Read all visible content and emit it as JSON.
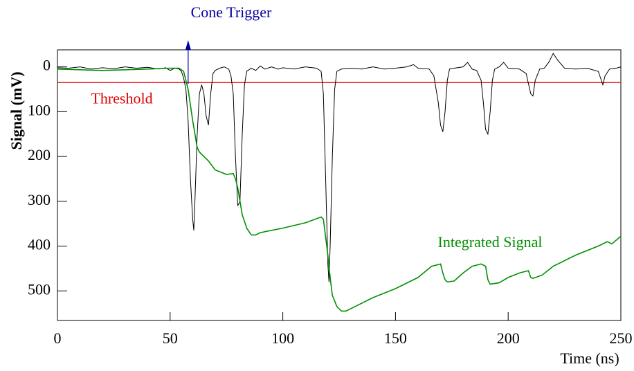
{
  "chart_data": {
    "type": "line",
    "xlabel": "Time (ns)",
    "ylabel": "Signal (mV)",
    "xlim": [
      0,
      250
    ],
    "ylim": [
      -38,
      566
    ],
    "y_inverted": true,
    "xticks": [
      0,
      50,
      100,
      150,
      200,
      250
    ],
    "yticks": [
      0,
      100,
      200,
      300,
      400,
      500
    ],
    "threshold": {
      "label": "Threshold",
      "value": 35,
      "color": "#e00000"
    },
    "trigger": {
      "label": "Cone Trigger",
      "value": 58,
      "color": "#0000a0"
    },
    "annotation": {
      "label": "Integrated Signal",
      "color": "#009000"
    },
    "series": [
      {
        "name": "Signal",
        "color": "#000000",
        "x": [
          0,
          5,
          10,
          15,
          20,
          25,
          30,
          35,
          40,
          45,
          48,
          50,
          52,
          54,
          55,
          56,
          57,
          58,
          59,
          60,
          60.5,
          61,
          62,
          63,
          64,
          65,
          66,
          67,
          68,
          69,
          70,
          72,
          74,
          76,
          77,
          78,
          79,
          80,
          81,
          82,
          83,
          84,
          86,
          88,
          90,
          92,
          95,
          98,
          100,
          105,
          110,
          115,
          117,
          118,
          119,
          120,
          120.5,
          121,
          122,
          123,
          124,
          126,
          130,
          135,
          140,
          145,
          150,
          155,
          158,
          160,
          165,
          167,
          169,
          170,
          171,
          172,
          173,
          174,
          176,
          180,
          182,
          184,
          186,
          188,
          189,
          190,
          191,
          192,
          193,
          194,
          196,
          198,
          200,
          205,
          208,
          210,
          211,
          212,
          214,
          216,
          218,
          220,
          222,
          225,
          230,
          235,
          240,
          242,
          243,
          245,
          248,
          250
        ],
        "values": [
          2,
          3,
          0,
          5,
          2,
          4,
          0,
          3,
          1,
          5,
          2,
          8,
          3,
          5,
          10,
          25,
          50,
          120,
          250,
          340,
          365,
          300,
          150,
          60,
          40,
          60,
          110,
          130,
          60,
          15,
          8,
          3,
          0,
          5,
          20,
          60,
          200,
          310,
          300,
          150,
          40,
          10,
          3,
          8,
          -2,
          5,
          0,
          5,
          2,
          5,
          0,
          3,
          10,
          60,
          250,
          440,
          480,
          400,
          200,
          50,
          10,
          5,
          3,
          5,
          0,
          5,
          3,
          0,
          -5,
          3,
          5,
          20,
          80,
          130,
          145,
          100,
          30,
          5,
          3,
          0,
          -10,
          5,
          8,
          30,
          80,
          140,
          150,
          100,
          30,
          5,
          0,
          -10,
          3,
          5,
          15,
          60,
          65,
          30,
          5,
          3,
          -10,
          -30,
          -15,
          3,
          5,
          3,
          10,
          40,
          20,
          5,
          3,
          0
        ]
      },
      {
        "name": "Integrated Signal",
        "color": "#009000",
        "x": [
          0,
          20,
          40,
          50,
          54,
          56,
          58,
          60,
          62,
          63,
          65,
          67,
          70,
          75,
          78,
          79,
          80,
          81,
          82,
          84,
          86,
          88,
          90,
          100,
          110,
          117,
          118,
          119,
          120,
          121,
          122,
          124,
          126,
          128,
          130,
          140,
          150,
          160,
          166,
          170,
          171,
          172,
          173,
          176,
          180,
          184,
          188,
          190,
          191,
          192,
          196,
          200,
          205,
          209,
          210,
          211,
          215,
          220,
          230,
          240,
          244,
          246,
          250
        ],
        "values": [
          5,
          8,
          5,
          3,
          3,
          10,
          50,
          120,
          180,
          190,
          200,
          210,
          230,
          240,
          238,
          250,
          270,
          300,
          330,
          360,
          375,
          375,
          370,
          360,
          348,
          335,
          340,
          380,
          420,
          470,
          510,
          535,
          545,
          545,
          540,
          515,
          495,
          470,
          445,
          440,
          460,
          475,
          480,
          478,
          460,
          445,
          440,
          445,
          475,
          485,
          482,
          470,
          460,
          455,
          470,
          472,
          465,
          445,
          420,
          400,
          390,
          395,
          378
        ]
      }
    ]
  }
}
